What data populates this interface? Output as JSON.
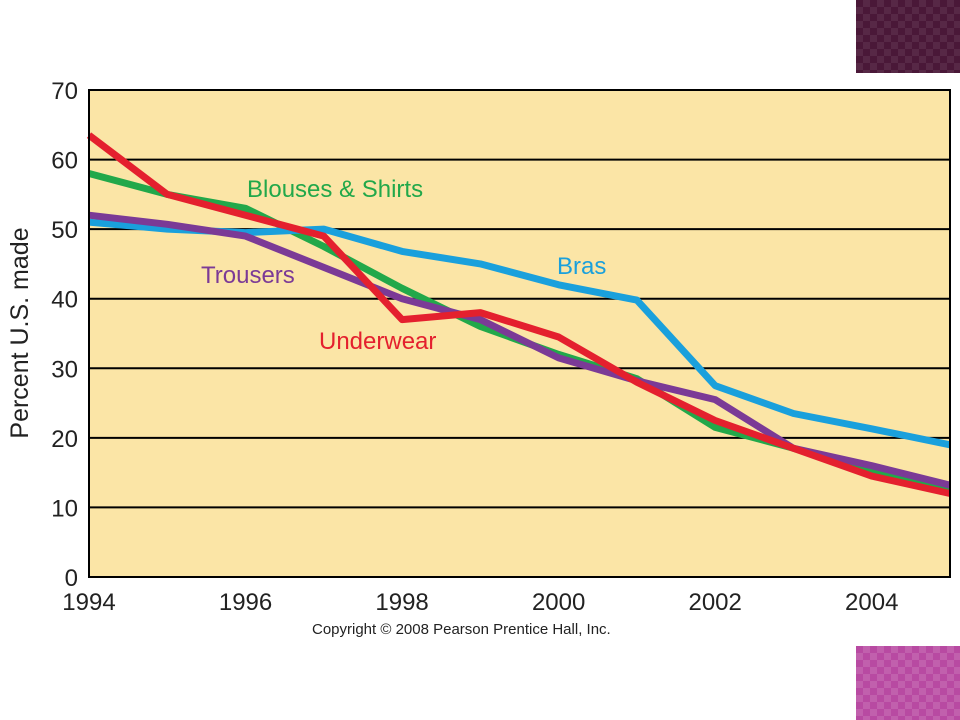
{
  "colors": {
    "plot_background": "#fbe5a6",
    "grid": "#000000",
    "deco_top": "#4a1838",
    "deco_bottom": "#b84aa2"
  },
  "copyright": "Copyright © 2008 Pearson Prentice Hall, Inc.",
  "chart_data": {
    "type": "line",
    "title": "",
    "xlabel": "",
    "ylabel": "Percent U.S. made",
    "xlim": [
      1994,
      2005
    ],
    "ylim": [
      0,
      70
    ],
    "x_ticks": [
      "1994",
      "1996",
      "1998",
      "2000",
      "2002",
      "2004"
    ],
    "y_ticks": [
      "0",
      "10",
      "20",
      "30",
      "40",
      "50",
      "60",
      "70"
    ],
    "grid": "horizontal",
    "legend": "none (series labeled directly on the lines)",
    "x": [
      1994,
      1995,
      1996,
      1997,
      1998,
      1999,
      2000,
      2001,
      2002,
      2003,
      2004,
      2005
    ],
    "series": [
      {
        "name": "Blouses & Shirts",
        "color": "#22a84a",
        "values": [
          58,
          55,
          53,
          47.5,
          41.5,
          36,
          32,
          28.5,
          21.5,
          18.5,
          15,
          12.5
        ]
      },
      {
        "name": "Bras",
        "color": "#1aa0dc",
        "values": [
          51,
          50,
          49.5,
          50,
          46.8,
          45,
          42,
          39.8,
          27.5,
          23.5,
          21.3,
          19
        ]
      },
      {
        "name": "Trousers",
        "color": "#7b3a96",
        "values": [
          52,
          50.7,
          49,
          44.5,
          40,
          37,
          31.5,
          28.2,
          25.5,
          18.5,
          16,
          13.2
        ]
      },
      {
        "name": "Underwear",
        "color": "#e4202e",
        "values": [
          63.5,
          55,
          52,
          49,
          37,
          38,
          34.5,
          28,
          22.5,
          18.5,
          14.5,
          12
        ]
      }
    ]
  }
}
